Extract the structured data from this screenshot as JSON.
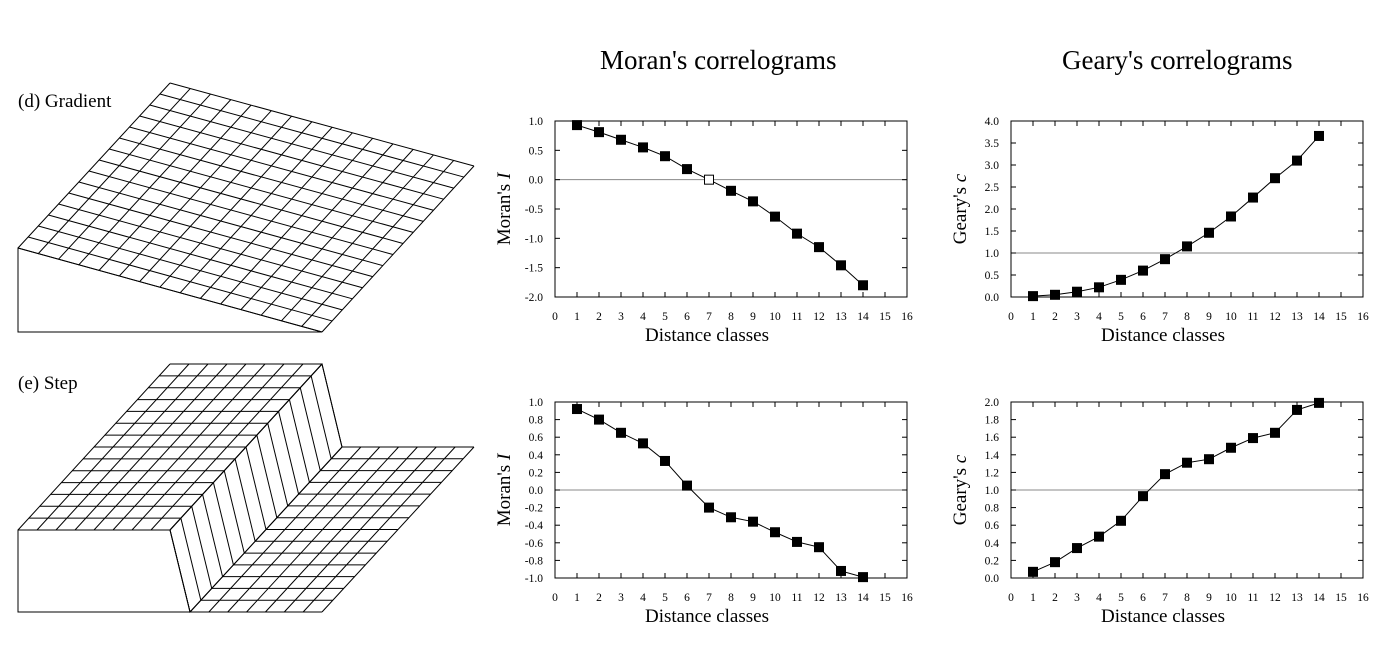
{
  "headers": {
    "moran": "Moran's correlograms",
    "geary": "Geary's correlograms"
  },
  "rows": {
    "gradient": "(d) Gradient",
    "step": "(e) Step"
  },
  "chart_data": [
    {
      "id": "moran-gradient",
      "type": "line",
      "title": "",
      "xlabel": "Distance classes",
      "ylabel_main": "Moran's ",
      "ylabel_italic": "I",
      "xlim": [
        0,
        16
      ],
      "ylim": [
        -2.0,
        1.0
      ],
      "xticks": [
        "0",
        "1",
        "2",
        "3",
        "4",
        "5",
        "6",
        "7",
        "8",
        "9",
        "10",
        "11",
        "12",
        "13",
        "14",
        "15",
        "16"
      ],
      "yticks": [
        "1.0",
        "0.5",
        "0.0",
        "-0.5",
        "-1.0",
        "-1.5",
        "-2.0"
      ],
      "ytick_values": [
        1.0,
        0.5,
        0.0,
        -0.5,
        -1.0,
        -1.5,
        -2.0
      ],
      "reference_line": 0.0,
      "x": [
        1,
        2,
        3,
        4,
        5,
        6,
        7,
        8,
        9,
        10,
        11,
        12,
        13,
        14
      ],
      "values": [
        0.93,
        0.81,
        0.68,
        0.55,
        0.4,
        0.18,
        0.0,
        -0.19,
        -0.37,
        -0.63,
        -0.92,
        -1.15,
        -1.46,
        -1.8
      ],
      "open_markers": [
        7
      ]
    },
    {
      "id": "geary-gradient",
      "type": "line",
      "title": "",
      "xlabel": "Distance classes",
      "ylabel_main": "Geary's ",
      "ylabel_italic": "c",
      "xlim": [
        0,
        16
      ],
      "ylim": [
        0.0,
        4.0
      ],
      "xticks": [
        "0",
        "1",
        "2",
        "3",
        "4",
        "5",
        "6",
        "7",
        "8",
        "9",
        "10",
        "11",
        "12",
        "13",
        "14",
        "15",
        "16"
      ],
      "yticks": [
        "4.0",
        "3.5",
        "3.0",
        "2.5",
        "2.0",
        "1.5",
        "1.0",
        "0.5",
        "0.0"
      ],
      "ytick_values": [
        4.0,
        3.5,
        3.0,
        2.5,
        2.0,
        1.5,
        1.0,
        0.5,
        0.0
      ],
      "reference_line": 1.0,
      "x": [
        1,
        2,
        3,
        4,
        5,
        6,
        7,
        8,
        9,
        10,
        11,
        12,
        13,
        14
      ],
      "values": [
        0.02,
        0.05,
        0.12,
        0.22,
        0.39,
        0.6,
        0.86,
        1.15,
        1.46,
        1.83,
        2.26,
        2.7,
        3.1,
        3.66
      ],
      "open_markers": []
    },
    {
      "id": "moran-step",
      "type": "line",
      "title": "",
      "xlabel": "Distance classes",
      "ylabel_main": "Moran's ",
      "ylabel_italic": "I",
      "xlim": [
        0,
        16
      ],
      "ylim": [
        -1.0,
        1.0
      ],
      "xticks": [
        "0",
        "1",
        "2",
        "3",
        "4",
        "5",
        "6",
        "7",
        "8",
        "9",
        "10",
        "11",
        "12",
        "13",
        "14",
        "15",
        "16"
      ],
      "yticks": [
        "1.0",
        "0.8",
        "0.6",
        "0.4",
        "0.2",
        "0.0",
        "-0.2",
        "-0.4",
        "-0.6",
        "-0.8",
        "-1.0"
      ],
      "ytick_values": [
        1.0,
        0.8,
        0.6,
        0.4,
        0.2,
        0.0,
        -0.2,
        -0.4,
        -0.6,
        -0.8,
        -1.0
      ],
      "reference_line": 0.0,
      "x": [
        1,
        2,
        3,
        4,
        5,
        6,
        7,
        8,
        9,
        10,
        11,
        12,
        13,
        14
      ],
      "values": [
        0.92,
        0.8,
        0.65,
        0.53,
        0.33,
        0.05,
        -0.2,
        -0.31,
        -0.36,
        -0.48,
        -0.59,
        -0.65,
        -0.92,
        -0.99
      ],
      "open_markers": []
    },
    {
      "id": "geary-step",
      "type": "line",
      "title": "",
      "xlabel": "Distance classes",
      "ylabel_main": "Geary's ",
      "ylabel_italic": "c",
      "xlim": [
        0,
        16
      ],
      "ylim": [
        0.0,
        2.0
      ],
      "xticks": [
        "0",
        "1",
        "2",
        "3",
        "4",
        "5",
        "6",
        "7",
        "8",
        "9",
        "10",
        "11",
        "12",
        "13",
        "14",
        "15",
        "16"
      ],
      "yticks": [
        "2.0",
        "1.8",
        "1.6",
        "1.4",
        "1.2",
        "1.0",
        "0.8",
        "0.6",
        "0.4",
        "0.2",
        "0.0"
      ],
      "ytick_values": [
        2.0,
        1.8,
        1.6,
        1.4,
        1.2,
        1.0,
        0.8,
        0.6,
        0.4,
        0.2,
        0.0
      ],
      "reference_line": 1.0,
      "x": [
        1,
        2,
        3,
        4,
        5,
        6,
        7,
        8,
        9,
        10,
        11,
        12,
        13,
        14
      ],
      "values": [
        0.07,
        0.18,
        0.34,
        0.47,
        0.65,
        0.93,
        1.18,
        1.31,
        1.35,
        1.48,
        1.59,
        1.65,
        1.91,
        1.99
      ],
      "open_markers": []
    }
  ]
}
